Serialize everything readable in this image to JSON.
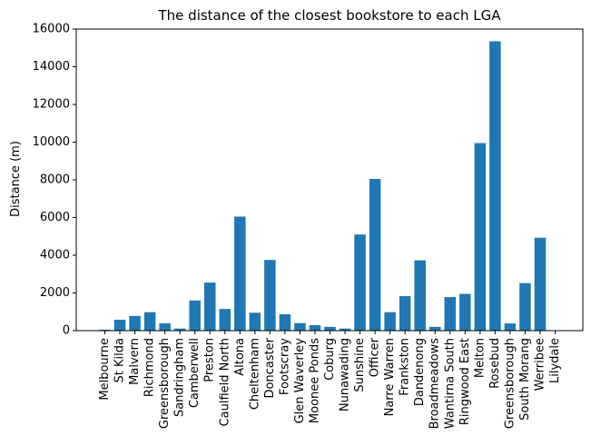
{
  "chart_data": {
    "type": "bar",
    "title": "The distance of the closest bookstore to each LGA",
    "xlabel": "",
    "ylabel": "Distance (m)",
    "ylim": [
      0,
      16000
    ],
    "y_ticks": [
      0,
      2000,
      4000,
      6000,
      8000,
      10000,
      12000,
      14000,
      16000
    ],
    "grid": false,
    "legend": "none",
    "colors": {
      "bar": "#1f77b4",
      "axis": "#000000"
    },
    "categories": [
      "Melbourne",
      "St Kilda",
      "Malvern",
      "Richmond",
      "Greensborough",
      "Sandringham",
      "Camberwell",
      "Preston",
      "Caulfield North",
      "Altona",
      "Cheltenham",
      "Doncaster",
      "Footscray",
      "Glen Waverley",
      "Moonee Ponds",
      "Coburg",
      "Nunawading",
      "Sunshine",
      "Officer",
      "Narre Warren",
      "Frankston",
      "Dandenong",
      "Broadmeadows",
      "Wantirna South",
      "Ringwood East",
      "Melton",
      "Rosebud",
      "Greensborough",
      "South Morang",
      "Werribee",
      "Lilydale"
    ],
    "values": [
      50,
      580,
      780,
      980,
      390,
      110,
      1600,
      2550,
      1150,
      6050,
      950,
      3750,
      870,
      400,
      290,
      200,
      110,
      5100,
      8050,
      980,
      1830,
      3730,
      200,
      1780,
      1950,
      9950,
      15350,
      380,
      2520,
      4930,
      0
    ]
  }
}
